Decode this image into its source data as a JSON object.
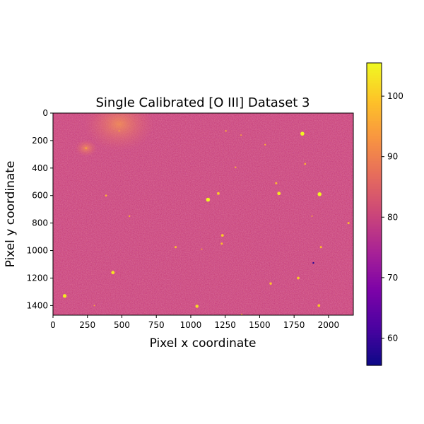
{
  "chart_data": {
    "type": "heatmap",
    "title": "Single Calibrated [O III] Dataset 3",
    "xlabel": "Pixel x coordinate",
    "ylabel": "Pixel y coordinate",
    "xlim": [
      0,
      2180
    ],
    "ylim": [
      1470,
      0
    ],
    "x_ticks": [
      0,
      250,
      500,
      750,
      1000,
      1250,
      1500,
      1750,
      2000
    ],
    "y_ticks": [
      0,
      200,
      400,
      600,
      800,
      1000,
      1200,
      1400
    ],
    "colormap": "plasma",
    "colorbar": {
      "min": 55.5,
      "max": 105.5,
      "ticks": [
        60,
        70,
        80,
        90,
        100
      ]
    },
    "background_level": 80,
    "bright_sources": [
      {
        "x": 1125,
        "y": 630,
        "value": 105
      },
      {
        "x": 1935,
        "y": 590,
        "value": 105
      },
      {
        "x": 1810,
        "y": 150,
        "value": 105
      },
      {
        "x": 1640,
        "y": 585,
        "value": 103
      },
      {
        "x": 240,
        "y": 255,
        "value": 96
      },
      {
        "x": 85,
        "y": 1330,
        "value": 104
      },
      {
        "x": 435,
        "y": 1160,
        "value": 103
      },
      {
        "x": 1230,
        "y": 890,
        "value": 100
      },
      {
        "x": 1200,
        "y": 585,
        "value": 100
      },
      {
        "x": 1045,
        "y": 1405,
        "value": 102
      },
      {
        "x": 1930,
        "y": 1400,
        "value": 100
      },
      {
        "x": 1780,
        "y": 1200,
        "value": 100
      },
      {
        "x": 1580,
        "y": 1240,
        "value": 99
      },
      {
        "x": 1620,
        "y": 510,
        "value": 98
      },
      {
        "x": 890,
        "y": 975,
        "value": 98
      },
      {
        "x": 1945,
        "y": 975,
        "value": 98
      },
      {
        "x": 1225,
        "y": 950,
        "value": 98
      },
      {
        "x": 555,
        "y": 750,
        "value": 96
      },
      {
        "x": 385,
        "y": 600,
        "value": 97
      },
      {
        "x": 1325,
        "y": 395,
        "value": 96
      },
      {
        "x": 1255,
        "y": 130,
        "value": 96
      },
      {
        "x": 1830,
        "y": 370,
        "value": 97
      },
      {
        "x": 1540,
        "y": 230,
        "value": 96
      },
      {
        "x": 1370,
        "y": 1465,
        "value": 96
      },
      {
        "x": 2145,
        "y": 800,
        "value": 98
      },
      {
        "x": 1365,
        "y": 160,
        "value": 95
      },
      {
        "x": 1080,
        "y": 990,
        "value": 95
      },
      {
        "x": 1880,
        "y": 750,
        "value": 95
      },
      {
        "x": 300,
        "y": 1400,
        "value": 95
      },
      {
        "x": 480,
        "y": 130,
        "value": 95
      }
    ],
    "diffuse_regions": [
      {
        "x": 480,
        "y": 80,
        "value": 88
      },
      {
        "x": 240,
        "y": 255,
        "value": 85
      }
    ],
    "dark_spots": [
      {
        "x": 1890,
        "y": 1090,
        "value": 58
      }
    ]
  }
}
